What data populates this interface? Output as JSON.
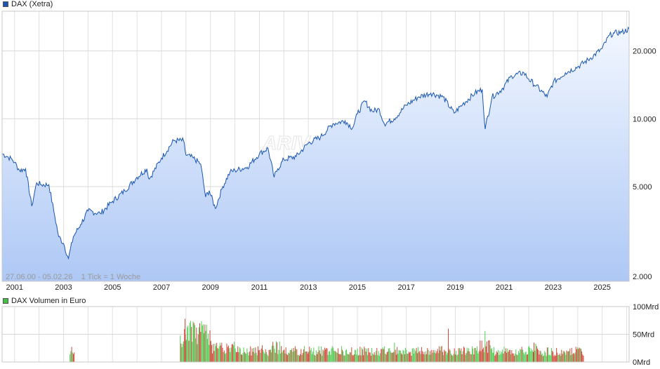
{
  "legend": {
    "price_label": "DAX (Xetra)",
    "price_color": "#1a56b0",
    "volume_label": "DAX Volumen in Euro",
    "volume_color": "#44c044"
  },
  "info_text": "27.06.00 - 05.02.26    1 Tick = 1 Woche",
  "watermark": "ARIVA.DE",
  "chart_data": [
    {
      "type": "area",
      "title": "DAX (Xetra)",
      "y_scale": "log",
      "ylim": [
        1900,
        30000
      ],
      "y_ticks": [
        2000,
        5000,
        10000,
        20000
      ],
      "y_tick_labels": [
        "2.000",
        "5.000",
        "10.000",
        "20.000"
      ],
      "x_ticks": [
        2001,
        2003,
        2005,
        2007,
        2009,
        2011,
        2013,
        2015,
        2017,
        2019,
        2021,
        2023,
        2025
      ],
      "xlim": [
        2000.49,
        2026.1
      ],
      "grid": true,
      "series": [
        {
          "name": "DAX (Xetra)",
          "x": [
            2000.49,
            2000.7,
            2000.9,
            2001.0,
            2001.2,
            2001.45,
            2001.7,
            2001.9,
            2002.1,
            2002.4,
            2002.6,
            2002.8,
            2003.0,
            2003.2,
            2003.4,
            2003.7,
            2004.0,
            2004.5,
            2005.0,
            2005.5,
            2006.0,
            2006.4,
            2006.5,
            2007.0,
            2007.5,
            2007.9,
            2008.0,
            2008.3,
            2008.6,
            2008.8,
            2008.95,
            2009.2,
            2009.5,
            2009.8,
            2010.0,
            2010.5,
            2011.0,
            2011.35,
            2011.6,
            2011.75,
            2012.0,
            2012.5,
            2013.0,
            2013.5,
            2014.0,
            2014.5,
            2014.8,
            2015.0,
            2015.3,
            2015.6,
            2015.9,
            2016.1,
            2016.5,
            2017.0,
            2017.5,
            2018.0,
            2018.5,
            2018.95,
            2019.3,
            2019.8,
            2020.1,
            2020.22,
            2020.5,
            2020.9,
            2021.3,
            2021.8,
            2022.0,
            2022.3,
            2022.75,
            2023.0,
            2023.5,
            2024.0,
            2024.5,
            2025.0,
            2025.3,
            2025.5,
            2025.8,
            2026.1
          ],
          "values": [
            7000,
            6800,
            6600,
            6400,
            5900,
            6000,
            4100,
            5200,
            5100,
            5100,
            3900,
            3000,
            2800,
            2400,
            3000,
            3400,
            3900,
            3800,
            4300,
            4800,
            5500,
            6000,
            5400,
            6700,
            8000,
            8000,
            6900,
            6700,
            6300,
            4500,
            4800,
            4000,
            5000,
            5800,
            5900,
            6100,
            7000,
            7400,
            5500,
            6000,
            6600,
            6800,
            7800,
            8300,
            9500,
            9800,
            9100,
            10500,
            12000,
            10800,
            11000,
            9500,
            10000,
            11500,
            12500,
            13000,
            12500,
            10600,
            11600,
            13000,
            13500,
            9000,
            12500,
            13500,
            15500,
            16000,
            15000,
            14000,
            12500,
            14500,
            16000,
            17000,
            18500,
            20500,
            23500,
            24000,
            24200,
            25000
          ]
        }
      ]
    },
    {
      "type": "bar",
      "title": "DAX Volumen in Euro",
      "ylabel": "Volumen in Euro",
      "ylim": [
        0,
        100
      ],
      "y_unit": "Mrd",
      "y_ticks": [
        0,
        50,
        100
      ],
      "y_tick_labels": [
        "0Mrd",
        "50Mrd",
        "100Mrd"
      ],
      "series": [
        {
          "name": "DAX Volumen in Euro",
          "segments": [
            {
              "from": 2003.25,
              "to": 2003.45,
              "value": 25
            },
            {
              "from": 2007.75,
              "to": 2008.0,
              "value": 48
            },
            {
              "from": 2008.0,
              "to": 2009.0,
              "value": 52
            },
            {
              "from": 2009.0,
              "to": 2010.0,
              "value": 26
            },
            {
              "from": 2010.0,
              "to": 2011.5,
              "value": 20
            },
            {
              "from": 2011.5,
              "to": 2012.0,
              "value": 26
            },
            {
              "from": 2012.0,
              "to": 2020.0,
              "value": 20
            },
            {
              "from": 2020.0,
              "to": 2020.5,
              "value": 30
            },
            {
              "from": 2020.5,
              "to": 2022.0,
              "value": 20
            },
            {
              "from": 2022.0,
              "to": 2022.5,
              "value": 24
            },
            {
              "from": 2022.5,
              "to": 2024.25,
              "value": 19
            }
          ],
          "peaks": [
            {
              "x": 2007.95,
              "value": 78
            },
            {
              "x": 2008.3,
              "value": 65
            },
            {
              "x": 2008.55,
              "value": 70
            },
            {
              "x": 2008.7,
              "value": 50
            },
            {
              "x": 2011.1,
              "value": 30
            },
            {
              "x": 2016.5,
              "value": 35
            },
            {
              "x": 2018.7,
              "value": 60
            },
            {
              "x": 2020.2,
              "value": 56
            },
            {
              "x": 2022.2,
              "value": 35
            }
          ]
        }
      ]
    }
  ]
}
